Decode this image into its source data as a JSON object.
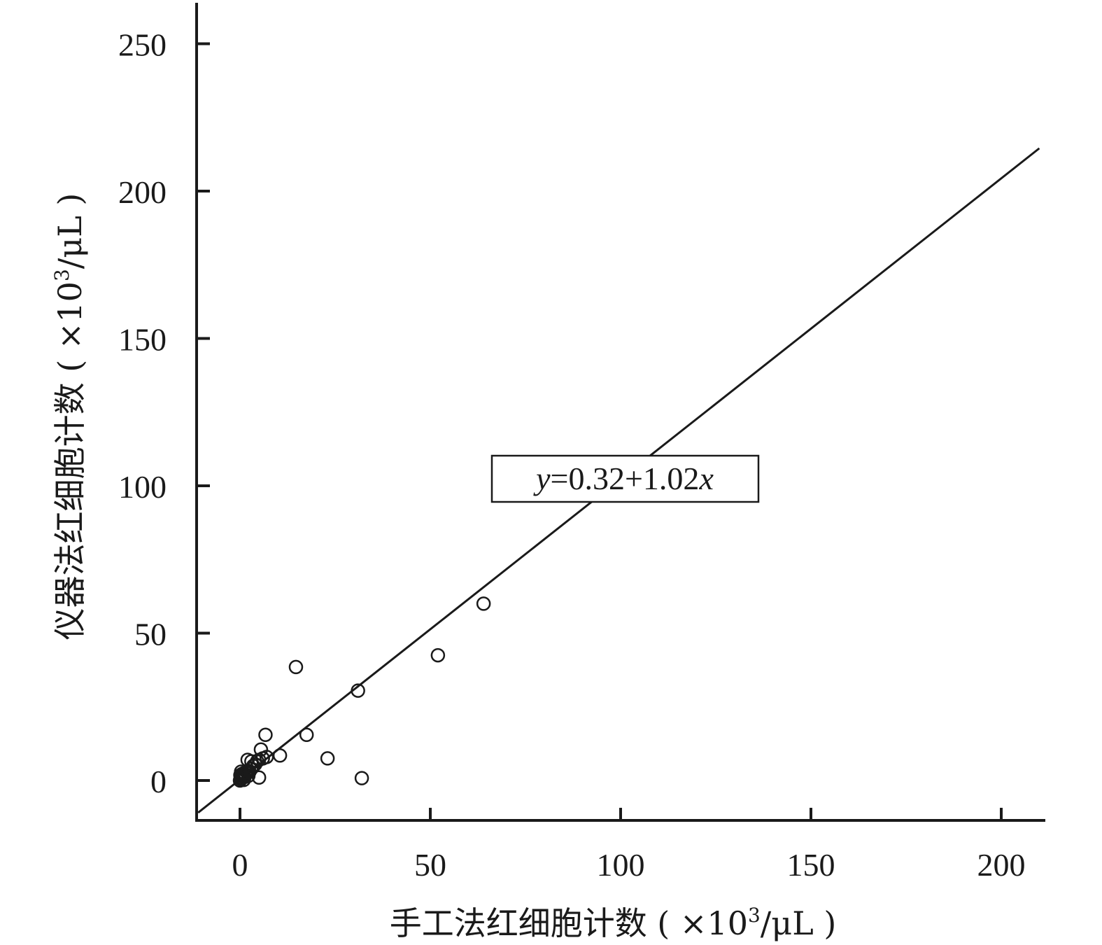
{
  "chart_data": {
    "type": "scatter",
    "title": "",
    "xlabel": "手工法红细胞计数 ( ×10",
    "xlabel_sup": "3",
    "xlabel_tail": "/μL )",
    "ylabel": "仪器法红细胞计数 ( ×10",
    "ylabel_sup": "3",
    "ylabel_tail": "/μL )",
    "xlim": [
      -11,
      211
    ],
    "ylim": [
      -13.5,
      263
    ],
    "x_ticks": [
      0,
      50,
      100,
      150,
      200
    ],
    "y_ticks": [
      0,
      50,
      100,
      150,
      200,
      250
    ],
    "x_tick_labels": [
      "0",
      "50",
      "100",
      "150",
      "200"
    ],
    "y_tick_labels": [
      "0",
      "50",
      "100",
      "150",
      "200",
      "250"
    ],
    "grid": false,
    "points": [
      {
        "x": 0,
        "y": 0
      },
      {
        "x": 0.2,
        "y": 0.5
      },
      {
        "x": 0.4,
        "y": 1.0
      },
      {
        "x": 0.6,
        "y": 1.5
      },
      {
        "x": 0.8,
        "y": 2.0
      },
      {
        "x": 1.0,
        "y": 2.5
      },
      {
        "x": 0.3,
        "y": 3.0
      },
      {
        "x": 1.2,
        "y": 1.2
      },
      {
        "x": 0.5,
        "y": 2.2
      },
      {
        "x": 1.5,
        "y": 2.0
      },
      {
        "x": 1.8,
        "y": 2.8
      },
      {
        "x": 2.0,
        "y": 3.3
      },
      {
        "x": 2.5,
        "y": 3.0
      },
      {
        "x": 0.1,
        "y": 1.8
      },
      {
        "x": 1.0,
        "y": 0.2
      },
      {
        "x": 2.2,
        "y": 1.6
      },
      {
        "x": 3.0,
        "y": 4.0
      },
      {
        "x": 3.5,
        "y": 5.0
      },
      {
        "x": 4.0,
        "y": 5.5
      },
      {
        "x": 4.5,
        "y": 6.5
      },
      {
        "x": 5.0,
        "y": 7.0
      },
      {
        "x": 2.0,
        "y": 7.0
      },
      {
        "x": 3.0,
        "y": 6.5
      },
      {
        "x": 6.0,
        "y": 7.5
      },
      {
        "x": 7.0,
        "y": 8.0
      },
      {
        "x": 5.5,
        "y": 10.5
      },
      {
        "x": 10.5,
        "y": 8.5
      },
      {
        "x": 5.0,
        "y": 1.0
      },
      {
        "x": 6.7,
        "y": 15.5
      },
      {
        "x": 17.5,
        "y": 15.5
      },
      {
        "x": 23.0,
        "y": 7.5
      },
      {
        "x": 14.7,
        "y": 38.5
      },
      {
        "x": 31.0,
        "y": 30.5
      },
      {
        "x": 32.0,
        "y": 0.8
      },
      {
        "x": 52.0,
        "y": 42.5
      },
      {
        "x": 64.0,
        "y": 60.0
      }
    ],
    "regression": {
      "intercept": 0.32,
      "slope": 1.02,
      "x_range": [
        -11,
        210
      ],
      "label_var_y": "y",
      "label_middle": "=0.32+1.02",
      "label_var_x": "x",
      "label_at": {
        "x": 101,
        "y": 101
      }
    }
  }
}
